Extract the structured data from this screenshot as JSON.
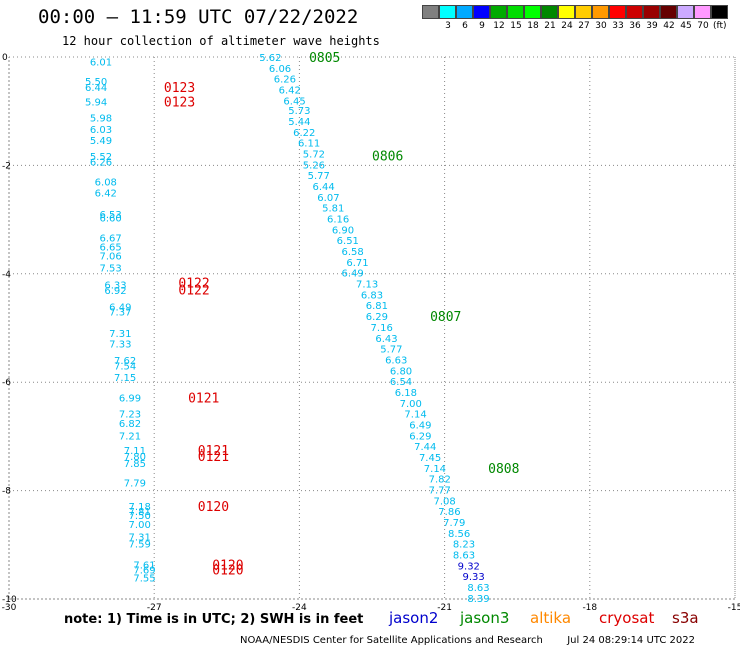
{
  "header": {
    "title": "00:00 – 11:59 UTC 07/22/2022",
    "subtitle": "12 hour collection of altimeter wave heights"
  },
  "legend": {
    "unit": "(ft)",
    "bins": [
      {
        "color": "#808080",
        "label": ""
      },
      {
        "color": "#00ffff",
        "label": "3"
      },
      {
        "color": "#00aaff",
        "label": "6"
      },
      {
        "color": "#0000ff",
        "label": "9"
      },
      {
        "color": "#00aa00",
        "label": "12"
      },
      {
        "color": "#00dd00",
        "label": "15"
      },
      {
        "color": "#00ff00",
        "label": "18"
      },
      {
        "color": "#008800",
        "label": "21"
      },
      {
        "color": "#ffff00",
        "label": "24"
      },
      {
        "color": "#ffcc00",
        "label": "27"
      },
      {
        "color": "#ff9900",
        "label": "30"
      },
      {
        "color": "#ff0000",
        "label": "33"
      },
      {
        "color": "#cc0000",
        "label": "36"
      },
      {
        "color": "#990000",
        "label": "39"
      },
      {
        "color": "#660000",
        "label": "42"
      },
      {
        "color": "#ccaaff",
        "label": "45"
      },
      {
        "color": "#ff99ff",
        "label": "70"
      },
      {
        "color": "#000000",
        "label": ""
      }
    ]
  },
  "map": {
    "lon_ticks": [
      "-30",
      "-27",
      "-24",
      "-21",
      "-18",
      "-15"
    ],
    "lat_ticks": [
      "0",
      "-2",
      "-4",
      "-6",
      "-8",
      "-10"
    ],
    "lon_range": [
      -30,
      -15
    ],
    "lat_range": [
      -10,
      0
    ]
  },
  "tracks": [
    {
      "satellite": "cryosat",
      "color": "#00bbee",
      "points": [
        {
          "lon": -28.1,
          "lat": -0.08,
          "v": "6.01"
        },
        {
          "lon": -28.2,
          "lat": -0.44,
          "v": "5.50"
        },
        {
          "lon": -28.2,
          "lat": -0.55,
          "v": "6.44"
        },
        {
          "lon": -28.2,
          "lat": -0.82,
          "v": "5.94"
        },
        {
          "lon": -28.1,
          "lat": -1.12,
          "v": "5.98"
        },
        {
          "lon": -28.1,
          "lat": -1.33,
          "v": "6.03"
        },
        {
          "lon": -28.1,
          "lat": -1.53,
          "v": "5.49"
        },
        {
          "lon": -28.1,
          "lat": -1.83,
          "v": "5.52"
        },
        {
          "lon": -28.1,
          "lat": -1.93,
          "v": "6.26"
        },
        {
          "lon": -28.0,
          "lat": -2.3,
          "v": "6.08"
        },
        {
          "lon": -28.0,
          "lat": -2.5,
          "v": "6.42"
        },
        {
          "lon": -27.9,
          "lat": -2.9,
          "v": "6.53"
        },
        {
          "lon": -27.9,
          "lat": -2.96,
          "v": "6.60"
        },
        {
          "lon": -27.9,
          "lat": -3.33,
          "v": "6.67"
        },
        {
          "lon": -27.9,
          "lat": -3.5,
          "v": "6.65"
        },
        {
          "lon": -27.9,
          "lat": -3.66,
          "v": "7.06"
        },
        {
          "lon": -27.9,
          "lat": -3.88,
          "v": "7.53"
        },
        {
          "lon": -27.8,
          "lat": -4.2,
          "v": "6.33"
        },
        {
          "lon": -27.8,
          "lat": -4.3,
          "v": "6.92"
        },
        {
          "lon": -27.7,
          "lat": -4.6,
          "v": "6.49"
        },
        {
          "lon": -27.7,
          "lat": -4.7,
          "v": "7.37"
        },
        {
          "lon": -27.7,
          "lat": -5.09,
          "v": "7.31"
        },
        {
          "lon": -27.7,
          "lat": -5.29,
          "v": "7.33"
        },
        {
          "lon": -27.6,
          "lat": -5.59,
          "v": "7.62"
        },
        {
          "lon": -27.6,
          "lat": -5.69,
          "v": "7.54"
        },
        {
          "lon": -27.6,
          "lat": -5.9,
          "v": "7.15"
        },
        {
          "lon": -27.5,
          "lat": -6.28,
          "v": "6.99"
        },
        {
          "lon": -27.5,
          "lat": -6.58,
          "v": "7.23"
        },
        {
          "lon": -27.5,
          "lat": -6.75,
          "v": "6.82"
        },
        {
          "lon": -27.5,
          "lat": -6.98,
          "v": "7.21"
        },
        {
          "lon": -27.4,
          "lat": -7.25,
          "v": "7.11"
        },
        {
          "lon": -27.4,
          "lat": -7.36,
          "v": "7.80"
        },
        {
          "lon": -27.4,
          "lat": -7.49,
          "v": "7.85"
        },
        {
          "lon": -27.4,
          "lat": -7.85,
          "v": "7.79"
        },
        {
          "lon": -27.3,
          "lat": -8.28,
          "v": "7.18"
        },
        {
          "lon": -27.3,
          "lat": -8.38,
          "v": "7.81"
        },
        {
          "lon": -27.3,
          "lat": -8.45,
          "v": "7.50"
        },
        {
          "lon": -27.3,
          "lat": -8.62,
          "v": "7.00"
        },
        {
          "lon": -27.3,
          "lat": -8.85,
          "v": "7.31"
        },
        {
          "lon": -27.3,
          "lat": -8.98,
          "v": "7.59"
        },
        {
          "lon": -27.2,
          "lat": -9.36,
          "v": "7.61"
        },
        {
          "lon": -27.2,
          "lat": -9.46,
          "v": "7.69"
        },
        {
          "lon": -27.2,
          "lat": -9.6,
          "v": "7.55"
        }
      ],
      "pass_labels": [
        {
          "lon": -26.8,
          "lat": -0.55,
          "text": "0123"
        },
        {
          "lon": -26.8,
          "lat": -0.82,
          "text": "0123"
        },
        {
          "lon": -26.5,
          "lat": -4.16,
          "text": "0122"
        },
        {
          "lon": -26.5,
          "lat": -4.29,
          "text": "0122"
        },
        {
          "lon": -26.3,
          "lat": -6.28,
          "text": "0121"
        },
        {
          "lon": -26.1,
          "lat": -7.25,
          "text": "0121"
        },
        {
          "lon": -26.1,
          "lat": -7.36,
          "text": "0121"
        },
        {
          "lon": -26.1,
          "lat": -8.28,
          "text": "0120"
        },
        {
          "lon": -25.8,
          "lat": -9.36,
          "text": "0120"
        },
        {
          "lon": -25.8,
          "lat": -9.46,
          "text": "0120"
        }
      ]
    },
    {
      "satellite": "jason3",
      "color": "#00bbee",
      "points": [
        {
          "lon": -24.6,
          "lat": 0.0,
          "v": "5.62"
        },
        {
          "lon": -24.4,
          "lat": -0.2,
          "v": "6.06"
        },
        {
          "lon": -24.3,
          "lat": -0.4,
          "v": "6.26"
        },
        {
          "lon": -24.2,
          "lat": -0.6,
          "v": "6.42"
        },
        {
          "lon": -24.1,
          "lat": -0.8,
          "v": "6.45"
        },
        {
          "lon": -24.0,
          "lat": -0.98,
          "v": "5.73"
        },
        {
          "lon": -24.0,
          "lat": -1.18,
          "v": "5.44"
        },
        {
          "lon": -23.9,
          "lat": -1.38,
          "v": "6.22"
        },
        {
          "lon": -23.8,
          "lat": -1.58,
          "v": "6.11"
        },
        {
          "lon": -23.7,
          "lat": -1.78,
          "v": "5.72"
        },
        {
          "lon": -23.7,
          "lat": -1.98,
          "v": "5.26"
        },
        {
          "lon": -23.6,
          "lat": -2.18,
          "v": "5.77"
        },
        {
          "lon": -23.5,
          "lat": -2.38,
          "v": "6.44"
        },
        {
          "lon": -23.4,
          "lat": -2.58,
          "v": "6.07"
        },
        {
          "lon": -23.3,
          "lat": -2.78,
          "v": "5.81"
        },
        {
          "lon": -23.2,
          "lat": -2.98,
          "v": "6.16"
        },
        {
          "lon": -23.1,
          "lat": -3.18,
          "v": "6.90"
        },
        {
          "lon": -23.0,
          "lat": -3.38,
          "v": "6.51"
        },
        {
          "lon": -22.9,
          "lat": -3.58,
          "v": "6.58"
        },
        {
          "lon": -22.8,
          "lat": -3.78,
          "v": "6.71"
        },
        {
          "lon": -22.9,
          "lat": -3.98,
          "v": "6.49"
        },
        {
          "lon": -22.6,
          "lat": -4.18,
          "v": "7.13"
        },
        {
          "lon": -22.5,
          "lat": -4.38,
          "v": "6.83"
        },
        {
          "lon": -22.4,
          "lat": -4.58,
          "v": "6.81"
        },
        {
          "lon": -22.4,
          "lat": -4.78,
          "v": "6.29"
        },
        {
          "lon": -22.3,
          "lat": -4.98,
          "v": "7.16"
        },
        {
          "lon": -22.2,
          "lat": -5.18,
          "v": "6.43"
        },
        {
          "lon": -22.1,
          "lat": -5.38,
          "v": "5.77"
        },
        {
          "lon": -22.0,
          "lat": -5.58,
          "v": "6.63"
        },
        {
          "lon": -21.9,
          "lat": -5.78,
          "v": "6.80"
        },
        {
          "lon": -21.9,
          "lat": -5.98,
          "v": "6.54"
        },
        {
          "lon": -21.8,
          "lat": -6.18,
          "v": "6.18"
        },
        {
          "lon": -21.7,
          "lat": -6.38,
          "v": "7.00"
        },
        {
          "lon": -21.6,
          "lat": -6.58,
          "v": "7.14"
        },
        {
          "lon": -21.5,
          "lat": -6.78,
          "v": "6.49"
        },
        {
          "lon": -21.5,
          "lat": -6.98,
          "v": "6.29"
        },
        {
          "lon": -21.4,
          "lat": -7.18,
          "v": "7.44"
        },
        {
          "lon": -21.3,
          "lat": -7.38,
          "v": "7.45"
        },
        {
          "lon": -21.2,
          "lat": -7.58,
          "v": "7.14"
        },
        {
          "lon": -21.1,
          "lat": -7.78,
          "v": "7.82"
        },
        {
          "lon": -21.1,
          "lat": -7.98,
          "v": "7.77"
        },
        {
          "lon": -21.0,
          "lat": -8.18,
          "v": "7.08"
        },
        {
          "lon": -20.9,
          "lat": -8.38,
          "v": "7.86"
        },
        {
          "lon": -20.8,
          "lat": -8.58,
          "v": "7.79"
        },
        {
          "lon": -20.7,
          "lat": -8.78,
          "v": "8.56"
        },
        {
          "lon": -20.6,
          "lat": -8.98,
          "v": "8.23"
        },
        {
          "lon": -20.6,
          "lat": -9.18,
          "v": "8.63"
        },
        {
          "lon": -20.5,
          "lat": -9.38,
          "v": "9.32",
          "high": true
        },
        {
          "lon": -20.4,
          "lat": -9.58,
          "v": "9.33",
          "high": true
        },
        {
          "lon": -20.3,
          "lat": -9.78,
          "v": "8.63"
        },
        {
          "lon": -20.3,
          "lat": -9.98,
          "v": "8.39"
        }
      ],
      "pass_labels": [
        {
          "lon": -23.8,
          "lat": 0.0,
          "text": "0805"
        },
        {
          "lon": -22.5,
          "lat": -1.82,
          "text": "0806"
        },
        {
          "lon": -21.3,
          "lat": -4.78,
          "text": "0807"
        },
        {
          "lon": -20.1,
          "lat": -7.58,
          "text": "0808"
        }
      ]
    }
  ],
  "note": "note:  1) Time is in UTC;  2) SWH is in feet",
  "satellites": [
    {
      "name": "jason2",
      "color": "#0000cc"
    },
    {
      "name": "jason3",
      "color": "#008800"
    },
    {
      "name": "altika",
      "color": "#ff8800"
    },
    {
      "name": "cryosat",
      "color": "#dd0000"
    },
    {
      "name": "s3a",
      "color": "#880000"
    }
  ],
  "footer": {
    "agency": "NOAA/NESDIS Center for Satellite Applications and Research",
    "generated": "Jul 24 08:29:14 UTC 2022"
  },
  "colors": {
    "pass_label_cryosat": "#dd0000",
    "pass_label_jason3": "#008800",
    "value_default": "#00bbee",
    "value_high": "#0000cc"
  }
}
